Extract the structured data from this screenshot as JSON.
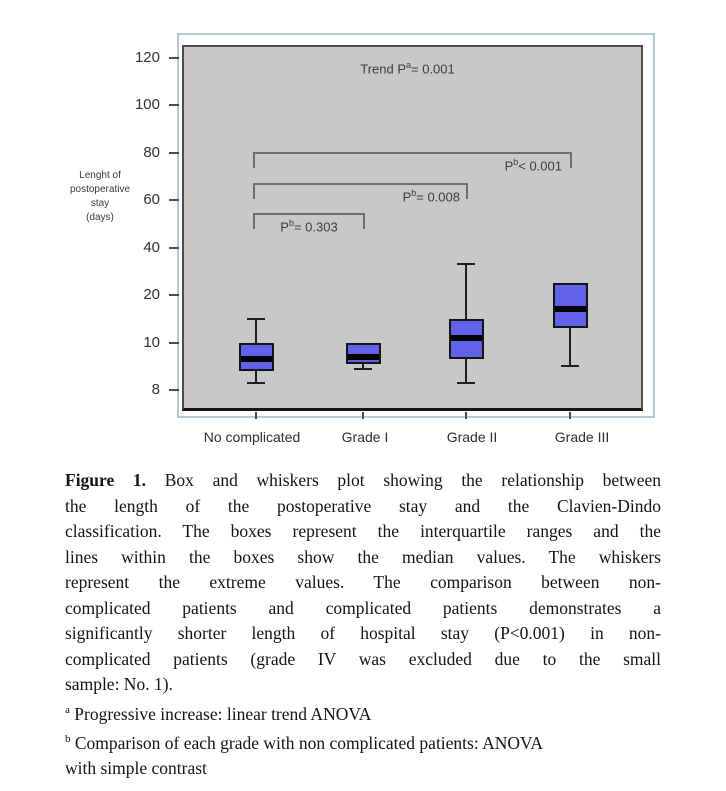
{
  "figure": {
    "caption_lines": [
      {
        "j": true,
        "seg": [
          {
            "t": "Figure 1.",
            "b": true
          },
          {
            "t": " Box and whiskers plot showing the relationship between"
          }
        ]
      },
      {
        "j": true,
        "seg": [
          {
            "t": "the length of the postoperative stay and the Clavien-Dindo"
          }
        ]
      },
      {
        "j": true,
        "seg": [
          {
            "t": "classification. The boxes represent the interquartile ranges and the"
          }
        ]
      },
      {
        "j": true,
        "seg": [
          {
            "t": "lines within the boxes show the median values. The whiskers"
          }
        ]
      },
      {
        "j": true,
        "seg": [
          {
            "t": "represent the extreme values. The comparison between non-"
          }
        ]
      },
      {
        "j": true,
        "seg": [
          {
            "t": "complicated patients and complicated patients demonstrates a"
          }
        ]
      },
      {
        "j": true,
        "seg": [
          {
            "t": "significantly shorter length of hospital stay (P<0.001) in non-"
          }
        ]
      },
      {
        "j": true,
        "seg": [
          {
            "t": "complicated patients (grade IV was excluded due to the small"
          }
        ]
      },
      {
        "j": false,
        "seg": [
          {
            "t": "sample: No. 1)."
          }
        ]
      },
      {
        "j": false,
        "seg": [
          {
            "t": "a",
            "sup": true
          },
          {
            "t": " Progressive increase: linear trend ANOVA"
          }
        ]
      },
      {
        "j": false,
        "seg": [
          {
            "t": "b",
            "sup": true
          },
          {
            "t": " Comparison of each grade with non complicated patients: ANOVA"
          }
        ]
      },
      {
        "j": false,
        "seg": [
          {
            "t": "with simple contrast"
          }
        ]
      }
    ]
  },
  "chart_data": {
    "type": "box",
    "title": "",
    "xlabel": "",
    "ylabel": "Lenght of postoperative stay (days)",
    "ylabel_lines": [
      "Lenght of",
      "postoperative",
      "stay",
      "(days)"
    ],
    "yticks": [
      8,
      10,
      20,
      40,
      60,
      80,
      100,
      120
    ],
    "axis_note": "ticks equally spaced (non-linear scale)",
    "grid": false,
    "legend": null,
    "categories": [
      "No complicated",
      "Grade I",
      "Grade II",
      "Grade III"
    ],
    "series": [
      {
        "category": "No complicated",
        "whisker_low": 8.3,
        "q1": 8.8,
        "median": 9.3,
        "q3": 10,
        "whisker_high": 15
      },
      {
        "category": "Grade I",
        "whisker_low": 8.9,
        "q1": 9.1,
        "median": 9.4,
        "q3": 10,
        "whisker_high": 10
      },
      {
        "category": "Grade II",
        "whisker_low": 8.3,
        "q1": 9.3,
        "median": 11,
        "q3": 15,
        "whisker_high": 33
      },
      {
        "category": "Grade III",
        "whisker_low": 9,
        "q1": 13,
        "median": 17,
        "q3": 25,
        "whisker_high": 25
      }
    ],
    "trend_annotation": {
      "text": "Trend Pa= 0.001",
      "segments": [
        {
          "t": "Trend P"
        },
        {
          "t": "a",
          "sup": true
        },
        {
          "t": "= 0.001"
        }
      ]
    },
    "comparisons": [
      {
        "from": "No complicated",
        "to": "Grade III",
        "p": "< 0.001",
        "segments": [
          {
            "t": "P"
          },
          {
            "t": "b",
            "sup": true
          },
          {
            "t": "< 0.001"
          }
        ]
      },
      {
        "from": "No complicated",
        "to": "Grade II",
        "p": "= 0.008",
        "segments": [
          {
            "t": "P"
          },
          {
            "t": "b",
            "sup": true
          },
          {
            "t": "= 0.008"
          }
        ]
      },
      {
        "from": "No complicated",
        "to": "Grade I",
        "p": "= 0.303",
        "segments": [
          {
            "t": "P"
          },
          {
            "t": "b",
            "sup": true
          },
          {
            "t": "= 0.303"
          }
        ]
      }
    ],
    "colors": {
      "box_fill": "#6161ea",
      "box_border": "#141414",
      "median": "#000000",
      "plot_bg": "#c8c8c8",
      "plot_border": "#4c4c4c",
      "frame_border": "#b5c9d7",
      "whisker": "#1f1f1f",
      "bracket": "#6e6e6e"
    }
  }
}
